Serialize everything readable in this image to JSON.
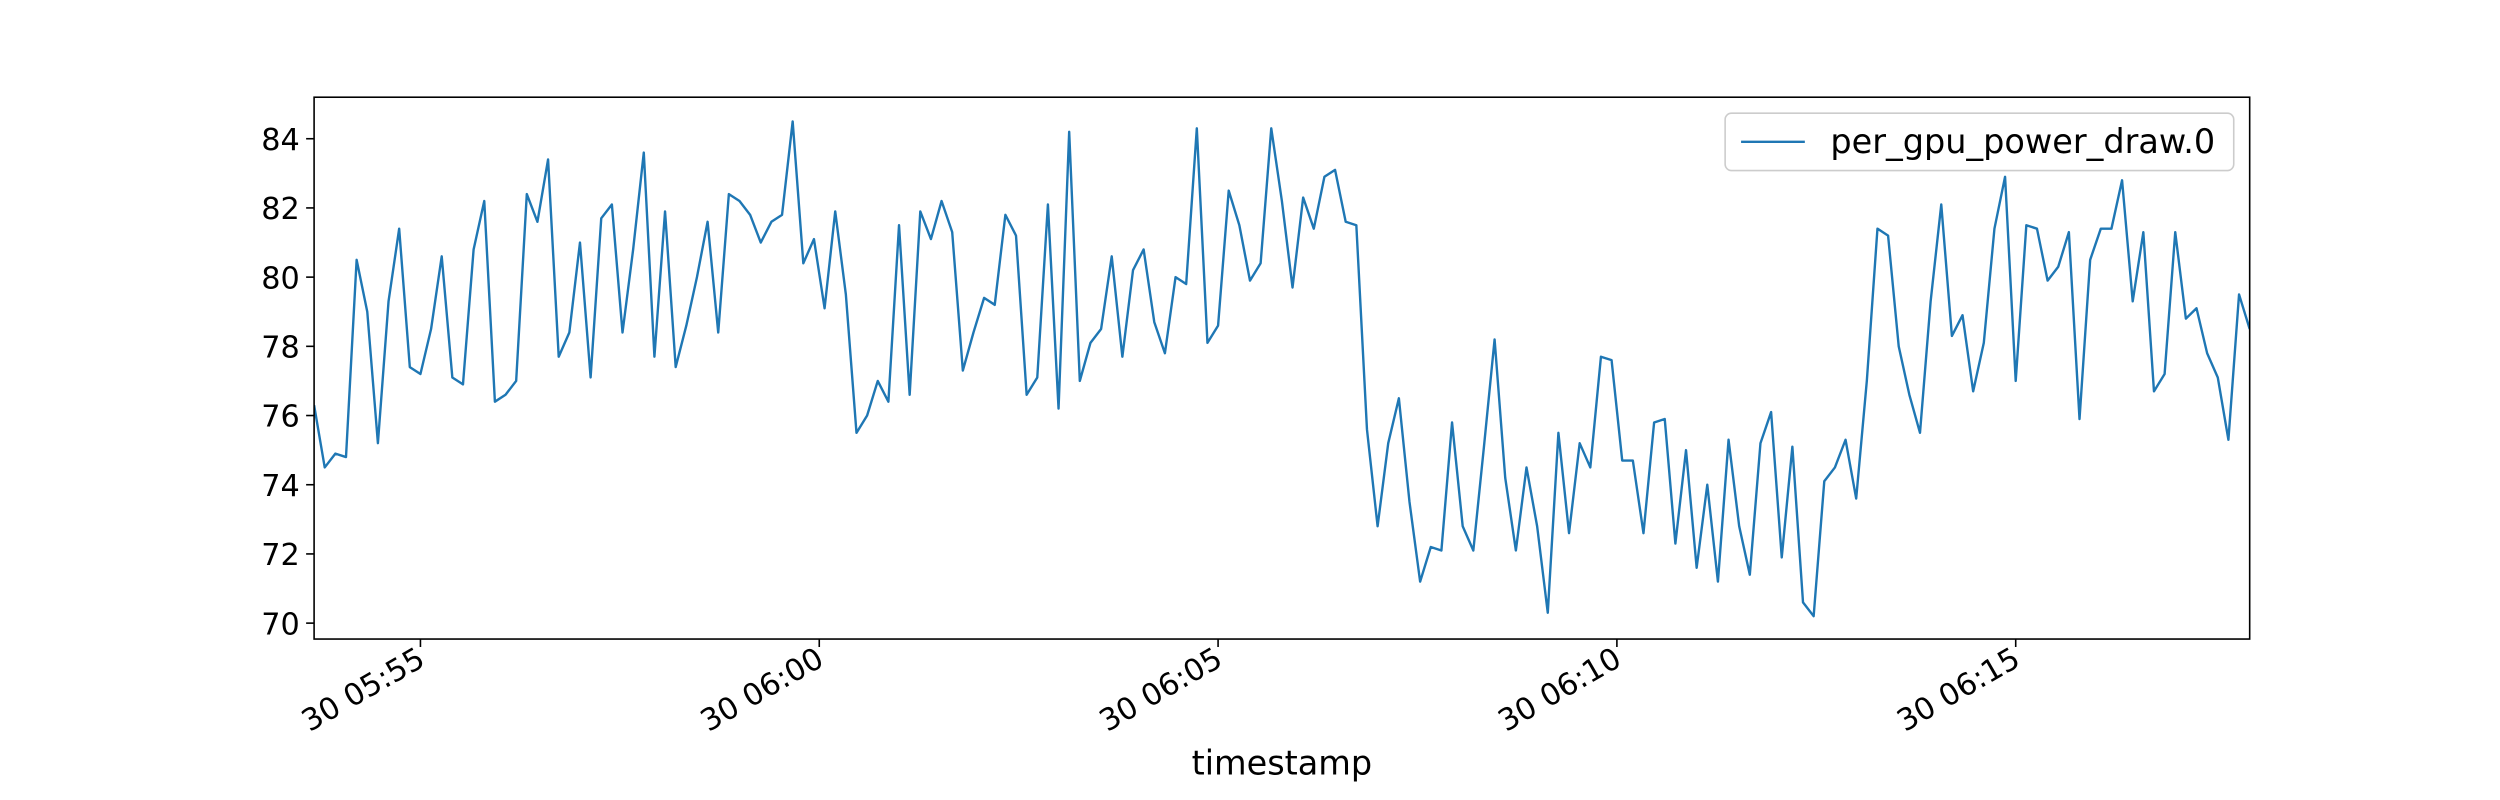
{
  "chart_data": {
    "type": "line",
    "x_label": "timestamp",
    "x": [
      "30 05:53:40",
      "30 05:53:48",
      "30 05:53:56",
      "30 05:54:04",
      "30 05:54:12",
      "30 05:54:20",
      "30 05:54:28",
      "30 05:54:36",
      "30 05:54:44",
      "30 05:54:52",
      "30 05:55:00",
      "30 05:55:08",
      "30 05:55:16",
      "30 05:55:24",
      "30 05:55:32",
      "30 05:55:40",
      "30 05:55:48",
      "30 05:55:56",
      "30 05:56:04",
      "30 05:56:12",
      "30 05:56:20",
      "30 05:56:28",
      "30 05:56:36",
      "30 05:56:44",
      "30 05:56:52",
      "30 05:57:00",
      "30 05:57:08",
      "30 05:57:16",
      "30 05:57:24",
      "30 05:57:32",
      "30 05:57:40",
      "30 05:57:48",
      "30 05:57:56",
      "30 05:58:04",
      "30 05:58:12",
      "30 05:58:20",
      "30 05:58:28",
      "30 05:58:36",
      "30 05:58:44",
      "30 05:58:52",
      "30 05:59:00",
      "30 05:59:08",
      "30 05:59:16",
      "30 05:59:24",
      "30 05:59:32",
      "30 05:59:40",
      "30 05:59:48",
      "30 05:59:56",
      "30 06:00:04",
      "30 06:00:12",
      "30 06:00:20",
      "30 06:00:28",
      "30 06:00:36",
      "30 06:00:44",
      "30 06:00:52",
      "30 06:01:00",
      "30 06:01:08",
      "30 06:01:16",
      "30 06:01:24",
      "30 06:01:32",
      "30 06:01:40",
      "30 06:01:48",
      "30 06:01:56",
      "30 06:02:04",
      "30 06:02:12",
      "30 06:02:20",
      "30 06:02:28",
      "30 06:02:36",
      "30 06:02:44",
      "30 06:02:52",
      "30 06:03:00",
      "30 06:03:08",
      "30 06:03:16",
      "30 06:03:24",
      "30 06:03:32",
      "30 06:03:40",
      "30 06:03:48",
      "30 06:03:56",
      "30 06:04:04",
      "30 06:04:12",
      "30 06:04:20",
      "30 06:04:28",
      "30 06:04:36",
      "30 06:04:44",
      "30 06:04:52",
      "30 06:05:00",
      "30 06:05:08",
      "30 06:05:16",
      "30 06:05:24",
      "30 06:05:32",
      "30 06:05:40",
      "30 06:05:48",
      "30 06:05:56",
      "30 06:06:04",
      "30 06:06:12",
      "30 06:06:20",
      "30 06:06:28",
      "30 06:06:36",
      "30 06:06:44",
      "30 06:06:52",
      "30 06:07:00",
      "30 06:07:08",
      "30 06:07:16",
      "30 06:07:24",
      "30 06:07:32",
      "30 06:07:40",
      "30 06:07:48",
      "30 06:07:56",
      "30 06:08:04",
      "30 06:08:12",
      "30 06:08:20",
      "30 06:08:28",
      "30 06:08:36",
      "30 06:08:44",
      "30 06:08:52",
      "30 06:09:00",
      "30 06:09:08",
      "30 06:09:16",
      "30 06:09:24",
      "30 06:09:32",
      "30 06:09:40",
      "30 06:09:48",
      "30 06:09:56",
      "30 06:10:04",
      "30 06:10:12",
      "30 06:10:20",
      "30 06:10:28",
      "30 06:10:36",
      "30 06:10:44",
      "30 06:10:52",
      "30 06:11:00",
      "30 06:11:08",
      "30 06:11:16",
      "30 06:11:24",
      "30 06:11:32",
      "30 06:11:40",
      "30 06:11:48",
      "30 06:11:56",
      "30 06:12:04",
      "30 06:12:12",
      "30 06:12:20",
      "30 06:12:28",
      "30 06:12:36",
      "30 06:12:44",
      "30 06:12:52",
      "30 06:13:00",
      "30 06:13:08",
      "30 06:13:16",
      "30 06:13:24",
      "30 06:13:32",
      "30 06:13:40",
      "30 06:13:48",
      "30 06:13:56",
      "30 06:14:04",
      "30 06:14:12",
      "30 06:14:20",
      "30 06:14:28",
      "30 06:14:36",
      "30 06:14:44",
      "30 06:14:52",
      "30 06:15:00",
      "30 06:15:08",
      "30 06:15:16",
      "30 06:15:24",
      "30 06:15:32",
      "30 06:15:40",
      "30 06:15:48",
      "30 06:15:56",
      "30 06:16:04",
      "30 06:16:12",
      "30 06:16:20",
      "30 06:16:28",
      "30 06:16:36",
      "30 06:16:44",
      "30 06:16:52",
      "30 06:17:00",
      "30 06:17:08",
      "30 06:17:16",
      "30 06:17:24",
      "30 06:17:32",
      "30 06:17:40",
      "30 06:17:48",
      "30 06:17:56"
    ],
    "series": [
      {
        "name": "per_gpu_power_draw.0",
        "color": "#1f77b4",
        "values": [
          76.3,
          74.5,
          74.9,
          74.8,
          80.5,
          79.0,
          75.2,
          79.3,
          81.4,
          77.4,
          77.2,
          78.5,
          80.6,
          77.1,
          76.9,
          80.8,
          82.2,
          76.4,
          76.6,
          77.0,
          82.4,
          81.6,
          83.4,
          77.7,
          78.4,
          81.0,
          77.1,
          81.7,
          82.1,
          78.4,
          80.8,
          83.6,
          77.7,
          81.9,
          77.4,
          78.6,
          80.0,
          81.6,
          78.4,
          82.4,
          82.2,
          81.8,
          81.0,
          81.6,
          81.8,
          84.5,
          80.4,
          81.1,
          79.1,
          81.9,
          79.5,
          75.5,
          76.0,
          77.0,
          76.4,
          81.5,
          76.6,
          81.9,
          81.1,
          82.2,
          81.3,
          77.3,
          78.4,
          79.4,
          79.2,
          81.8,
          81.2,
          76.6,
          77.1,
          82.1,
          76.2,
          84.2,
          77.0,
          78.1,
          78.5,
          80.6,
          77.7,
          80.2,
          80.8,
          78.7,
          77.8,
          80.0,
          79.8,
          84.3,
          78.1,
          78.6,
          82.5,
          81.5,
          79.9,
          80.4,
          84.3,
          82.2,
          79.7,
          82.3,
          81.4,
          82.9,
          83.1,
          81.6,
          81.5,
          75.6,
          72.8,
          75.2,
          76.5,
          73.5,
          71.2,
          72.2,
          72.1,
          75.8,
          72.8,
          72.1,
          75.1,
          78.2,
          74.2,
          72.1,
          74.5,
          72.8,
          70.3,
          75.5,
          72.6,
          75.2,
          74.5,
          77.7,
          77.6,
          74.7,
          74.7,
          72.6,
          75.8,
          75.9,
          72.3,
          75.0,
          71.6,
          74.0,
          71.2,
          75.3,
          72.8,
          71.4,
          75.2,
          76.1,
          71.9,
          75.1,
          70.6,
          70.2,
          74.1,
          74.5,
          75.3,
          73.6,
          77.0,
          81.4,
          81.2,
          78.0,
          76.6,
          75.5,
          79.3,
          82.1,
          78.3,
          78.9,
          76.7,
          78.1,
          81.4,
          82.9,
          77.0,
          81.5,
          81.4,
          79.9,
          80.3,
          81.3,
          75.9,
          80.5,
          81.4,
          81.4,
          82.8,
          79.3,
          81.3,
          76.7,
          77.2,
          81.3,
          78.8,
          79.1,
          77.8,
          77.1,
          75.3,
          79.5,
          78.5
        ]
      }
    ],
    "xlim": [
      "30 05:53:40",
      "30 06:17:56"
    ],
    "xticks": [
      "30 05:55",
      "30 06:00",
      "30 06:05",
      "30 06:10",
      "30 06:15"
    ],
    "ylim": [
      69.54,
      85.2
    ],
    "yticks": [
      70,
      72,
      74,
      76,
      78,
      80,
      82,
      84
    ],
    "grid": false,
    "legend": "upper right"
  }
}
